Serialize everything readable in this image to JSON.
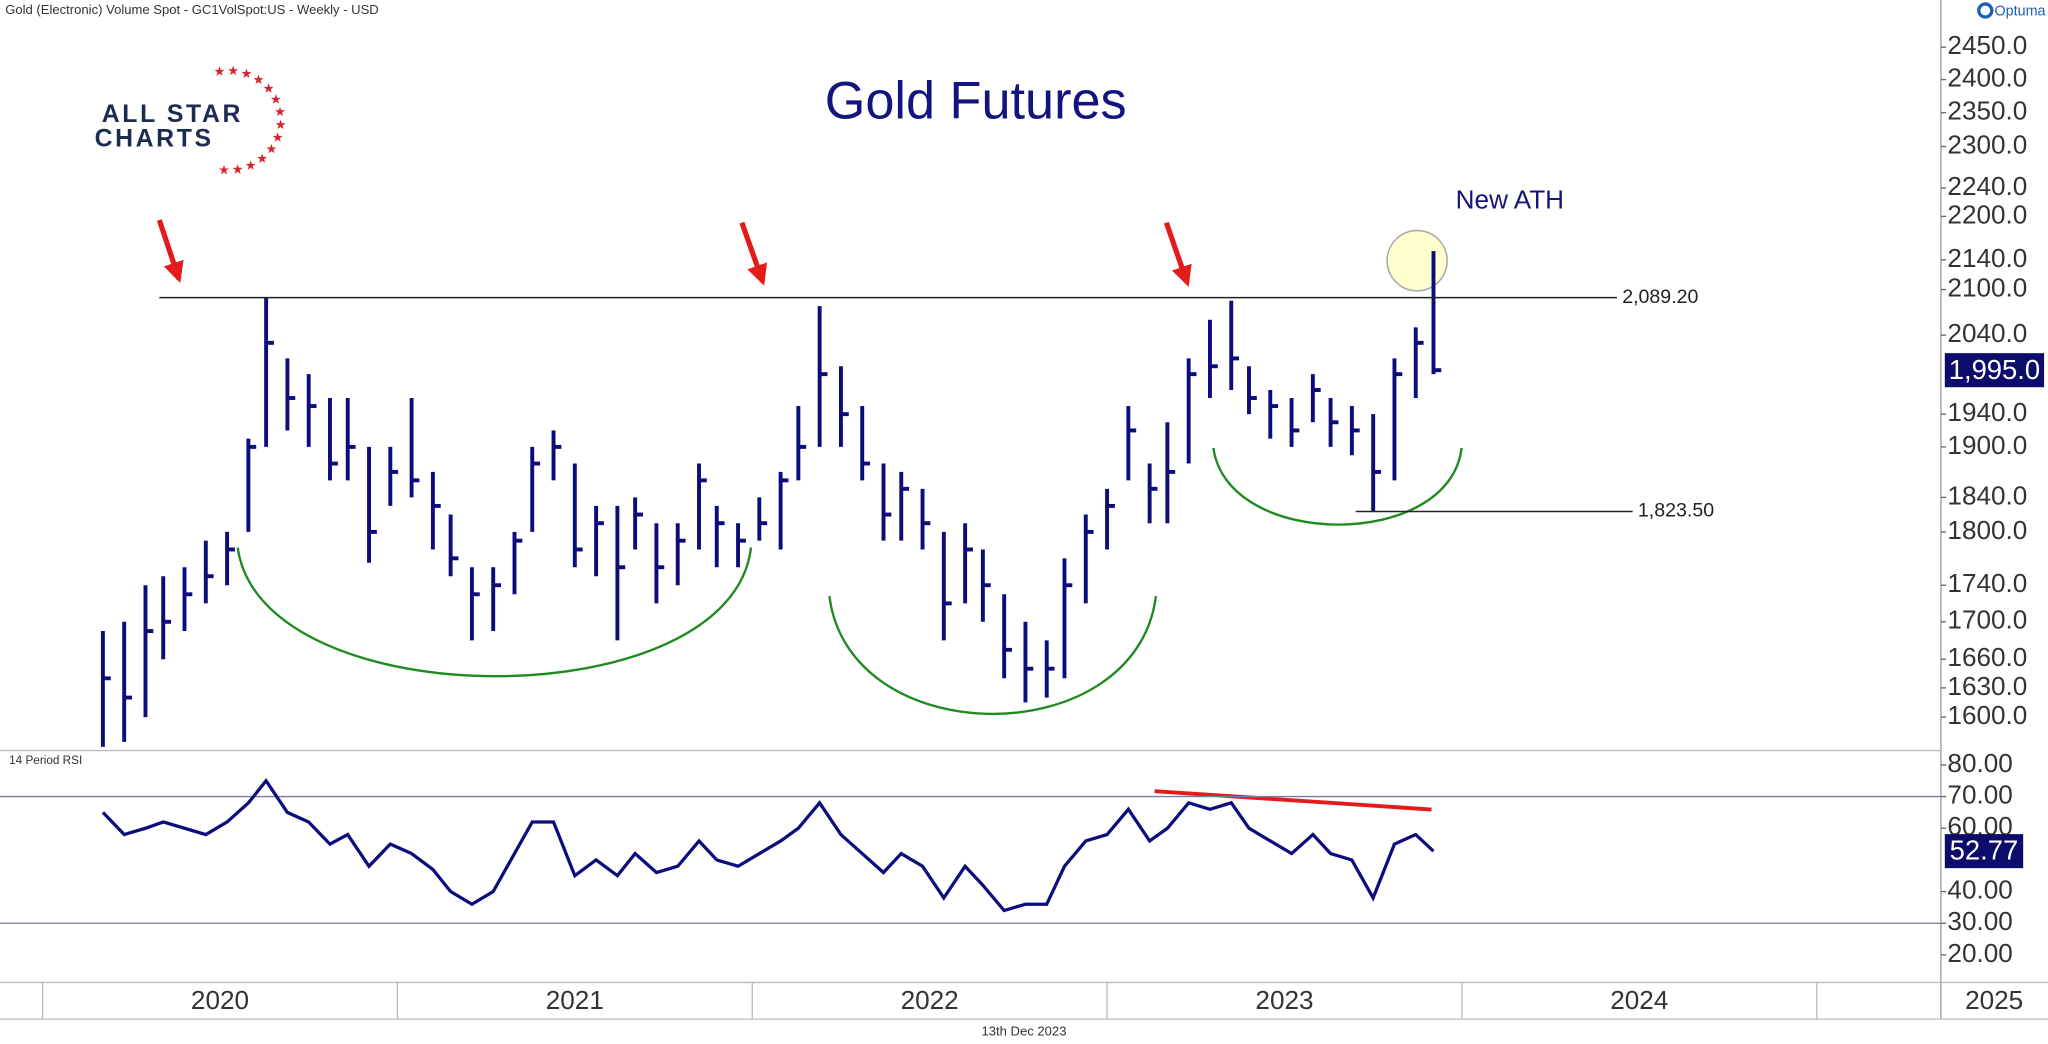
{
  "header": {
    "source": "Gold (Electronic) Volume Spot - GC1VolSpot:US - Weekly - USD",
    "brand": "Optuma",
    "logo": [
      "ALL STAR",
      "CHARTS"
    ],
    "date": "13th Dec 2023"
  },
  "chart_data": [
    {
      "type": "ohlc",
      "title": "Gold Futures",
      "color": "#0c0c7c",
      "log_scale": true,
      "x": [
        2020.17,
        2020.23,
        2020.29,
        2020.34,
        2020.4,
        2020.46,
        2020.52,
        2020.58,
        2020.63,
        2020.69,
        2020.75,
        2020.81,
        2020.86,
        2020.92,
        2020.98,
        2021.04,
        2021.1,
        2021.15,
        2021.21,
        2021.27,
        2021.33,
        2021.38,
        2021.44,
        2021.5,
        2021.56,
        2021.62,
        2021.67,
        2021.73,
        2021.79,
        2021.85,
        2021.9,
        2021.96,
        2022.02,
        2022.08,
        2022.13,
        2022.19,
        2022.25,
        2022.31,
        2022.37,
        2022.42,
        2022.48,
        2022.54,
        2022.6,
        2022.65,
        2022.71,
        2022.77,
        2022.83,
        2022.88,
        2022.94,
        2023.0,
        2023.06,
        2023.12,
        2023.17,
        2023.23,
        2023.29,
        2023.35,
        2023.4,
        2023.46,
        2023.52,
        2023.58,
        2023.63,
        2023.69,
        2023.75,
        2023.81,
        2023.87,
        2023.92
      ],
      "high": [
        1690,
        1700,
        1740,
        1750,
        1760,
        1790,
        1800,
        1910,
        2089,
        2010,
        1990,
        1960,
        1960,
        1900,
        1900,
        1960,
        1870,
        1820,
        1760,
        1760,
        1800,
        1900,
        1920,
        1880,
        1830,
        1830,
        1840,
        1810,
        1810,
        1880,
        1830,
        1810,
        1840,
        1870,
        1950,
        2078,
        2000,
        1950,
        1880,
        1870,
        1850,
        1800,
        1810,
        1780,
        1730,
        1700,
        1680,
        1770,
        1820,
        1850,
        1950,
        1880,
        1930,
        2010,
        2060,
        2085,
        2000,
        1970,
        1960,
        1990,
        1960,
        1950,
        1940,
        2010,
        2050,
        2152
      ],
      "low": [
        1570,
        1575,
        1600,
        1660,
        1690,
        1720,
        1740,
        1800,
        1900,
        1920,
        1900,
        1860,
        1860,
        1765,
        1830,
        1840,
        1780,
        1750,
        1680,
        1690,
        1730,
        1800,
        1860,
        1760,
        1750,
        1680,
        1780,
        1720,
        1740,
        1780,
        1760,
        1760,
        1790,
        1780,
        1860,
        1900,
        1900,
        1860,
        1790,
        1790,
        1780,
        1680,
        1720,
        1700,
        1640,
        1615,
        1620,
        1640,
        1720,
        1780,
        1860,
        1810,
        1810,
        1880,
        1960,
        1970,
        1940,
        1910,
        1900,
        1930,
        1900,
        1890,
        1823,
        1860,
        1960,
        1990
      ],
      "close": [
        1640,
        1620,
        1690,
        1700,
        1730,
        1750,
        1780,
        1900,
        2030,
        1960,
        1950,
        1880,
        1900,
        1800,
        1870,
        1860,
        1830,
        1770,
        1730,
        1740,
        1790,
        1880,
        1900,
        1780,
        1810,
        1760,
        1820,
        1760,
        1790,
        1860,
        1810,
        1790,
        1810,
        1860,
        1900,
        1990,
        1940,
        1880,
        1820,
        1850,
        1810,
        1720,
        1780,
        1740,
        1670,
        1650,
        1650,
        1740,
        1800,
        1830,
        1920,
        1850,
        1870,
        1990,
        2000,
        2010,
        1960,
        1950,
        1920,
        1970,
        1930,
        1920,
        1870,
        1990,
        2030,
        1995
      ],
      "xlim": [
        2019.88,
        2025.35
      ],
      "xticks": [
        2020,
        2021,
        2022,
        2023,
        2024,
        2025
      ],
      "ylim": [
        1567.6,
        2499.5
      ],
      "yticks": [
        {
          "value": 1600,
          "label": "1600.0"
        },
        {
          "value": 1630,
          "label": "1630.0"
        },
        {
          "value": 1660,
          "label": "1660.0"
        },
        {
          "value": 1700,
          "label": "1700.0"
        },
        {
          "value": 1740,
          "label": "1740.0"
        },
        {
          "value": 1800,
          "label": "1800.0"
        },
        {
          "value": 1840,
          "label": "1840.0"
        },
        {
          "value": 1900,
          "label": "1900.0"
        },
        {
          "value": 1940,
          "label": "1940.0"
        },
        {
          "value": 2040,
          "label": "2040.0"
        },
        {
          "value": 2100,
          "label": "2100.0"
        },
        {
          "value": 2140,
          "label": "2140.0"
        },
        {
          "value": 2200,
          "label": "2200.0"
        },
        {
          "value": 2240,
          "label": "2240.0"
        },
        {
          "value": 2300,
          "label": "2300.0"
        },
        {
          "value": 2350,
          "label": "2350.0"
        },
        {
          "value": 2400,
          "label": "2400.0"
        },
        {
          "value": 2450,
          "label": "2450.0"
        }
      ],
      "hlines": [
        {
          "value": 2089.2,
          "label": "2,089.20"
        },
        {
          "value": 1823.5,
          "label": "1,823.50"
        }
      ],
      "last": {
        "value": 1995,
        "label": "1,995.0"
      },
      "annotations": [
        "New ATH"
      ]
    },
    {
      "type": "line",
      "title": "14 Period RSI",
      "color": "#0c0c7c",
      "values": [
        65,
        58,
        60,
        62,
        60,
        58,
        62,
        68,
        75,
        65,
        62,
        55,
        58,
        48,
        55,
        52,
        47,
        40,
        36,
        40,
        52,
        62,
        62,
        45,
        50,
        45,
        52,
        46,
        48,
        56,
        50,
        48,
        52,
        56,
        60,
        68,
        58,
        52,
        46,
        52,
        48,
        38,
        48,
        42,
        34,
        36,
        36,
        48,
        56,
        58,
        66,
        56,
        60,
        68,
        66,
        68,
        60,
        56,
        52,
        58,
        52,
        50,
        38,
        55,
        58,
        52.77
      ],
      "ylim": [
        11.3,
        83.7
      ],
      "yticks": [
        {
          "value": 20,
          "label": "20.00"
        },
        {
          "value": 30,
          "label": "30.00"
        },
        {
          "value": 40,
          "label": "40.00"
        },
        {
          "value": 60,
          "label": "60.00"
        },
        {
          "value": 70,
          "label": "70.00"
        },
        {
          "value": 80,
          "label": "80.00"
        }
      ],
      "levels": [
        30,
        70
      ]
    }
  ]
}
